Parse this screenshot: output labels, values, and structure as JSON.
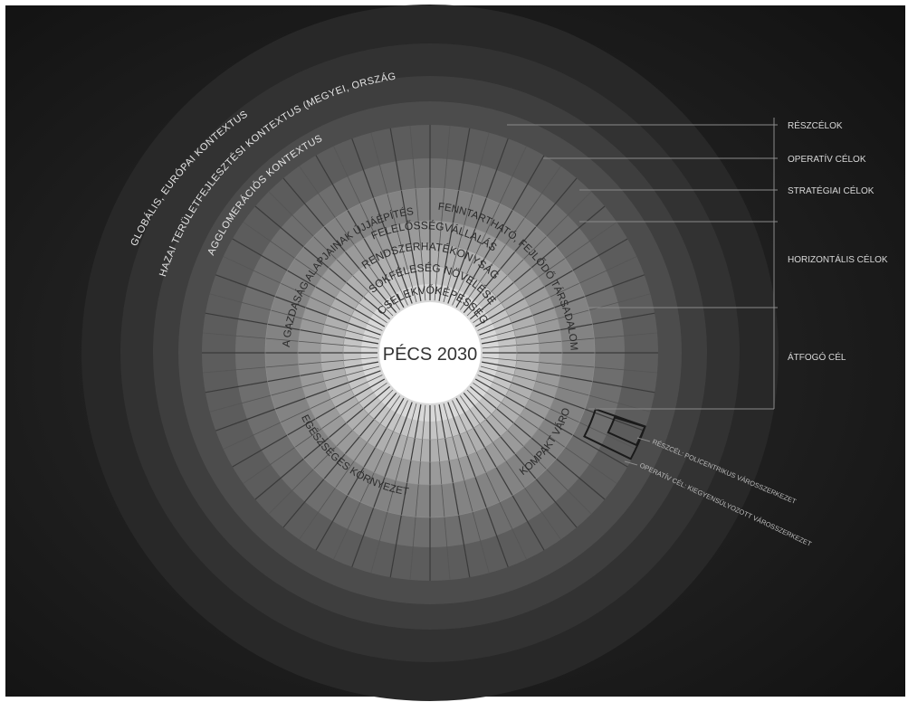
{
  "center_label": "PÉCS 2030",
  "context_rings": [
    {
      "id": "global",
      "label": "GLOBÁLIS, EURÓPAI KONTEXTUS"
    },
    {
      "id": "national",
      "label": "HAZAI TERÜLETFEJLESZTÉSI KONTEXTUS (MEGYEI, ORSZÁGOS)"
    },
    {
      "id": "agglo",
      "label": "AGGLOMERÁCIÓS KONTEXTUS"
    }
  ],
  "horizontal_goals": [
    "FELELŐSSÉGVÁLLALÁS",
    "RENDSZERHATÉKONYSÁG",
    "SOKFÉLESÉG NÖVELÉSE",
    "CSELEKVŐKÉPESSÉG"
  ],
  "strategic_goals": [
    {
      "id": "gazdasag",
      "label": "A GAZDASÁG ALAPJAINAK ÚJJÁÉPÍTÉSE"
    },
    {
      "id": "tarsadalom",
      "label": "FENNTARTHATÓ, FEJLŐDŐ TÁRSADALOM"
    },
    {
      "id": "kompakt",
      "label": "KOMPAKT VÁROS"
    },
    {
      "id": "kornyezet",
      "label": "EGÉSZSÉGES KÖRNYEZET"
    }
  ],
  "legend": [
    {
      "id": "reszcelok",
      "label": "RÉSZCÉLOK"
    },
    {
      "id": "operativ",
      "label": "OPERATÍV CÉLOK"
    },
    {
      "id": "strategiai",
      "label": "STRATÉGIAI CÉLOK"
    },
    {
      "id": "horizontalis",
      "label": "HORIZONTÁLIS CÉLOK"
    },
    {
      "id": "atfogo",
      "label": "ÁTFOGÓ CÉL"
    }
  ],
  "callouts": [
    "RÉSZCÉL: POLICENTRIKUS VÁROSSZERKEZET",
    "OPERATÍV CÉL: KIEGYENSÚLYOZOTT VÁROSSZERKEZET"
  ],
  "colors": {
    "background": "#1c1c1c",
    "center_disk": "#ffffff",
    "text_light": "#e6e6e6",
    "text_dark": "#333333",
    "leader_line": "#8a8a8a"
  }
}
